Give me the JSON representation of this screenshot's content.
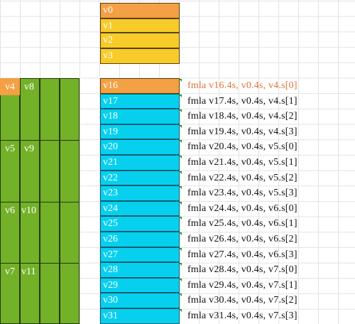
{
  "top_registers": [
    "v0",
    "v1",
    "v2",
    "v3"
  ],
  "a_registers": [
    {
      "left": "v4",
      "right": "v8"
    },
    {
      "left": "v5",
      "right": "v9"
    },
    {
      "left": "v6",
      "right": "v10"
    },
    {
      "left": "v7",
      "right": "v11"
    }
  ],
  "accumulators": [
    "v16",
    "v17",
    "v18",
    "v19",
    "v20",
    "v21",
    "v22",
    "v23",
    "v24",
    "v25",
    "v26",
    "v27",
    "v28",
    "v29",
    "v30",
    "v31"
  ],
  "instructions": [
    "fmla v16.4s, v0.4s, v4.s[0]",
    "fmla v17.4s, v0.4s, v4.s[1]",
    "fmla v18.4s, v0.4s, v4.s[2]",
    "fmla v19.4s, v0.4s, v4.s[3]",
    "fmla v20.4s, v0.4s, v5.s[0]",
    "fmla v21.4s, v0.4s, v5.s[1]",
    "fmla v22.4s, v0.4s, v5.s[2]",
    "fmla v23.4s, v0.4s, v5.s[3]",
    "fmla v24.4s, v0.4s, v6.s[0]",
    "fmla v25.4s, v0.4s, v6.s[1]",
    "fmla v26.4s, v0.4s, v6.s[2]",
    "fmla v27.4s, v0.4s, v6.s[3]",
    "fmla v28.4s, v0.4s, v7.s[0]",
    "fmla v29.4s, v0.4s, v7.s[1]",
    "fmla v30.4s, v0.4s, v7.s[2]",
    "fmla v31.4s, v0.4s, v7.s[3]"
  ],
  "highlight_index": 0,
  "colors": {
    "highlight": "#f4a044",
    "top": "#f7cb2a",
    "accumulator": "#07d0ef",
    "a_block": "#73b129",
    "highlight_text": "#e0733a"
  }
}
